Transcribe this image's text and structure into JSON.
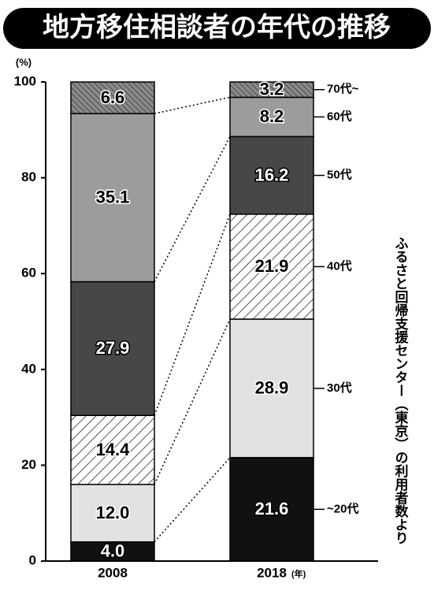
{
  "chart_data": {
    "type": "stacked_bar",
    "title": "地方移住相談者の年代の推移",
    "y_label": "(%)",
    "x_unit": "(年)",
    "source": "ふるさと回帰支援センター（東京）の利用者数より",
    "categories": [
      "2008",
      "2018"
    ],
    "series": [
      {
        "name": "~20代",
        "color": "#111111",
        "values": [
          4.0,
          21.6
        ],
        "value_labels": [
          "4.0",
          "21.6"
        ]
      },
      {
        "name": "30代",
        "color": "#e2e2e2",
        "values": [
          12.0,
          28.9
        ],
        "value_labels": [
          "12.0",
          "28.9"
        ]
      },
      {
        "name": "40代",
        "color": "#ffffff",
        "hatch": true,
        "values": [
          14.4,
          21.9
        ],
        "value_labels": [
          "14.4",
          "21.9"
        ]
      },
      {
        "name": "50代",
        "color": "#474747",
        "values": [
          27.9,
          16.2
        ],
        "value_labels": [
          "27.9",
          "16.2"
        ]
      },
      {
        "name": "60代",
        "color": "#9c9c9c",
        "values": [
          35.1,
          8.2
        ],
        "value_labels": [
          "35.1",
          "8.2"
        ]
      },
      {
        "name": "70代~",
        "color": "#8a8a8a",
        "hatch": true,
        "values": [
          6.6,
          3.2
        ],
        "value_labels": [
          "6.6",
          "3.2"
        ]
      }
    ],
    "ylim": [
      0,
      100
    ],
    "yticks": [
      0,
      20,
      40,
      60,
      80,
      100
    ]
  }
}
